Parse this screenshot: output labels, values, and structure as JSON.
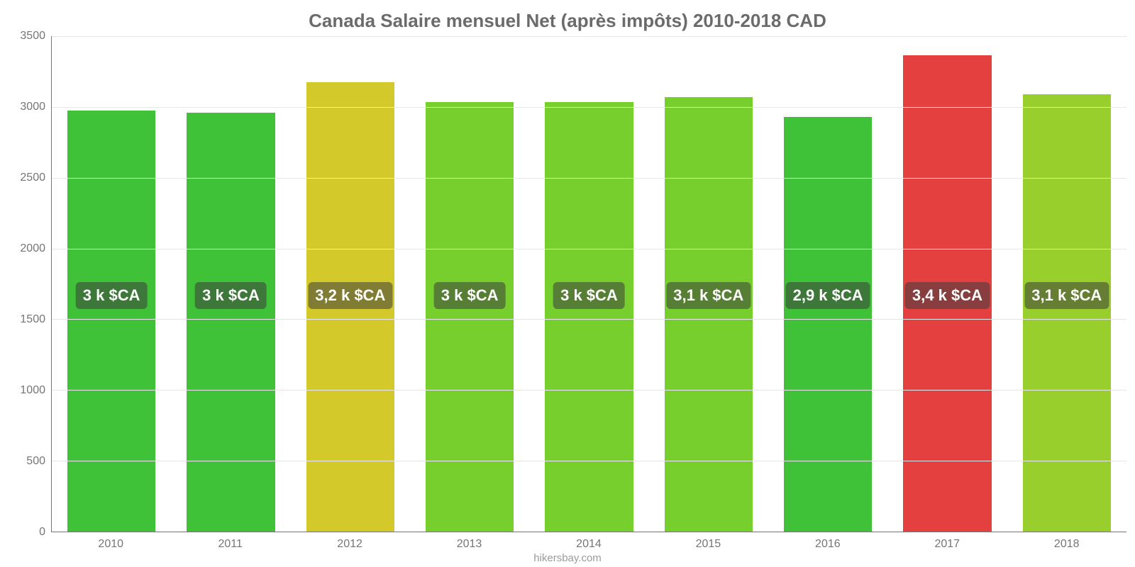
{
  "chart": {
    "type": "bar",
    "title": "Canada Salaire mensuel Net (après impôts) 2010-2018 CAD",
    "title_fontsize": 26,
    "title_color": "#6b6b6b",
    "background_color": "#ffffff",
    "grid_color": "#e6e6e6",
    "axis_color": "#757575",
    "tick_color": "#757575",
    "tick_fontsize": 16,
    "bar_width": 0.74,
    "categories": [
      "2010",
      "2011",
      "2012",
      "2013",
      "2014",
      "2015",
      "2016",
      "2017",
      "2018"
    ],
    "values": [
      2975,
      2960,
      3175,
      3035,
      3035,
      3070,
      2930,
      3365,
      3090
    ],
    "bar_colors": [
      "#3fc238",
      "#3fc238",
      "#d4c92a",
      "#76cf2c",
      "#76cf2c",
      "#76cf2c",
      "#3fc238",
      "#e44040",
      "#98cf2c"
    ],
    "value_labels": [
      "3 k $CA",
      "3 k $CA",
      "3,2 k $CA",
      "3 k $CA",
      "3 k $CA",
      "3,1 k $CA",
      "2,9 k $CA",
      "3,4 k $CA",
      "3,1 k $CA"
    ],
    "value_label_fontsize": 22,
    "value_label_bg": "rgba(60,60,60,0.55)",
    "value_label_color": "#ffffff",
    "ylim": [
      0,
      3500
    ],
    "yticks": [
      0,
      500,
      1000,
      1500,
      2000,
      2500,
      3000,
      3500
    ],
    "label_y_value": 1660
  },
  "footer": {
    "text": "hikersbay.com",
    "color": "#9a9a9a",
    "fontsize": 15
  }
}
